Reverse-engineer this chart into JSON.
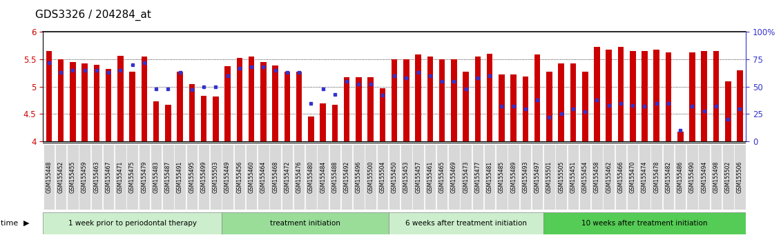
{
  "title": "GDS3326 / 204284_at",
  "ylim": [
    4.0,
    6.0
  ],
  "bar_color": "#cc0000",
  "dot_color": "#3333cc",
  "tick_label_color": "#cc0000",
  "right_tick_color": "#3333cc",
  "samples": [
    "GSM155448",
    "GSM155452",
    "GSM155455",
    "GSM155459",
    "GSM155463",
    "GSM155467",
    "GSM155471",
    "GSM155475",
    "GSM155479",
    "GSM155483",
    "GSM155487",
    "GSM155491",
    "GSM155495",
    "GSM155499",
    "GSM155503",
    "GSM155449",
    "GSM155456",
    "GSM155460",
    "GSM155464",
    "GSM155468",
    "GSM155472",
    "GSM155476",
    "GSM155480",
    "GSM155484",
    "GSM155488",
    "GSM155492",
    "GSM155496",
    "GSM155500",
    "GSM155504",
    "GSM155450",
    "GSM155453",
    "GSM155457",
    "GSM155461",
    "GSM155465",
    "GSM155469",
    "GSM155473",
    "GSM155477",
    "GSM155481",
    "GSM155485",
    "GSM155489",
    "GSM155493",
    "GSM155497",
    "GSM155501",
    "GSM155505",
    "GSM155451",
    "GSM155454",
    "GSM155458",
    "GSM155462",
    "GSM155466",
    "GSM155470",
    "GSM155474",
    "GSM155478",
    "GSM155482",
    "GSM155486",
    "GSM155490",
    "GSM155494",
    "GSM155498",
    "GSM155502",
    "GSM155506"
  ],
  "values": [
    5.65,
    5.5,
    5.45,
    5.42,
    5.4,
    5.32,
    5.56,
    5.27,
    5.55,
    4.73,
    4.67,
    5.27,
    5.05,
    4.83,
    4.82,
    5.37,
    5.52,
    5.55,
    5.45,
    5.38,
    5.27,
    5.27,
    4.45,
    4.7,
    4.67,
    5.17,
    5.17,
    5.17,
    4.97,
    5.5,
    5.5,
    5.58,
    5.55,
    5.5,
    5.5,
    5.27,
    5.55,
    5.6,
    5.22,
    5.22,
    5.18,
    5.58,
    5.27,
    5.42,
    5.42,
    5.27,
    5.72,
    5.68,
    5.72,
    5.65,
    5.65,
    5.68,
    5.62,
    4.18,
    5.62,
    5.65,
    5.65,
    5.1,
    5.3
  ],
  "percentiles": [
    72,
    63,
    65,
    65,
    65,
    63,
    65,
    70,
    72,
    48,
    48,
    63,
    47,
    50,
    50,
    60,
    67,
    68,
    68,
    65,
    63,
    63,
    35,
    48,
    43,
    55,
    52,
    52,
    42,
    60,
    58,
    63,
    60,
    55,
    55,
    48,
    58,
    60,
    32,
    32,
    30,
    38,
    22,
    25,
    30,
    27,
    38,
    33,
    35,
    33,
    32,
    35,
    35,
    10,
    32,
    28,
    32,
    20,
    30
  ],
  "groups": [
    {
      "label": "1 week prior to periodontal therapy",
      "start": 0,
      "end": 15,
      "color": "#cceecc"
    },
    {
      "label": "treatment initiation",
      "start": 15,
      "end": 29,
      "color": "#99dd99"
    },
    {
      "label": "6 weeks after treatment initiation",
      "start": 29,
      "end": 42,
      "color": "#cceecc"
    },
    {
      "label": "10 weeks after treatment initiation",
      "start": 42,
      "end": 59,
      "color": "#55cc55"
    }
  ]
}
